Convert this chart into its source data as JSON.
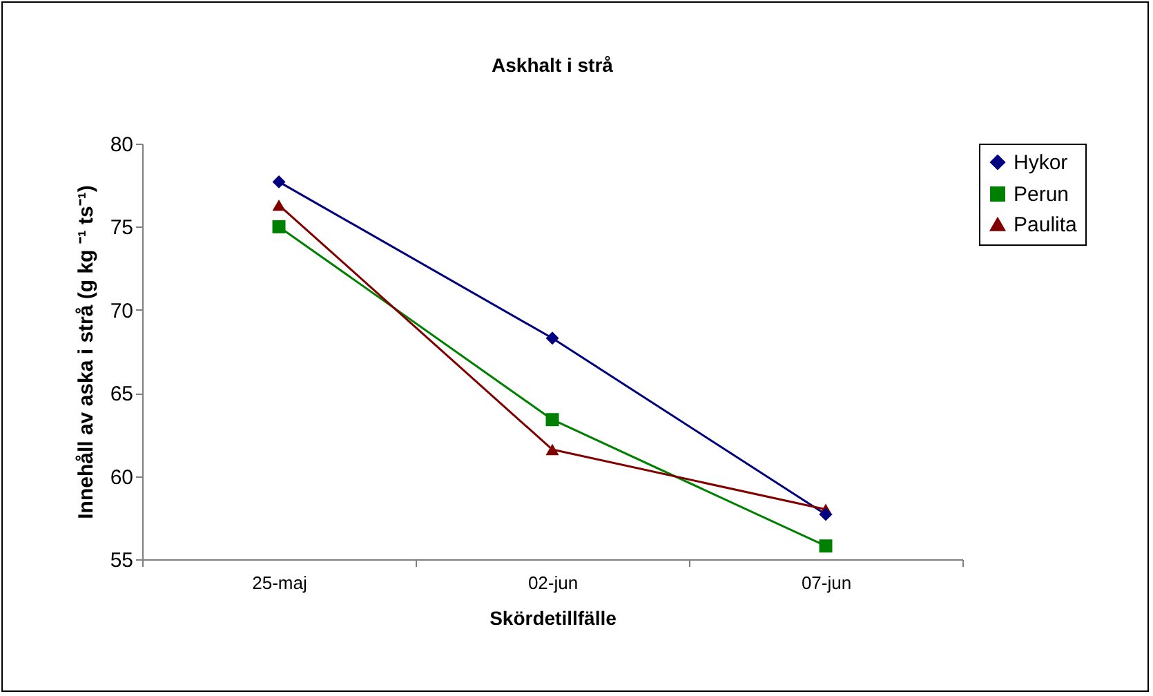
{
  "chart_data": {
    "type": "line",
    "title": "Askhalt i strå",
    "xlabel": "Skördetillfälle",
    "ylabel": "Innehåll av aska i strå (g kg ⁻¹ ts⁻¹)",
    "categories": [
      "25-maj",
      "02-jun",
      "07-jun"
    ],
    "series": [
      {
        "name": "Hykor",
        "color": "#000080",
        "marker": "diamond",
        "values": [
          77.7,
          68.3,
          57.7
        ]
      },
      {
        "name": "Perun",
        "color": "#008000",
        "marker": "square",
        "values": [
          75.0,
          63.4,
          55.8
        ]
      },
      {
        "name": "Paulita",
        "color": "#800000",
        "marker": "triangle",
        "values": [
          76.3,
          61.6,
          58.0
        ]
      }
    ],
    "ylim": [
      55,
      80
    ],
    "yticks": [
      55,
      60,
      65,
      70,
      75,
      80
    ],
    "grid": false,
    "legend": "right",
    "line_style": "solid"
  }
}
